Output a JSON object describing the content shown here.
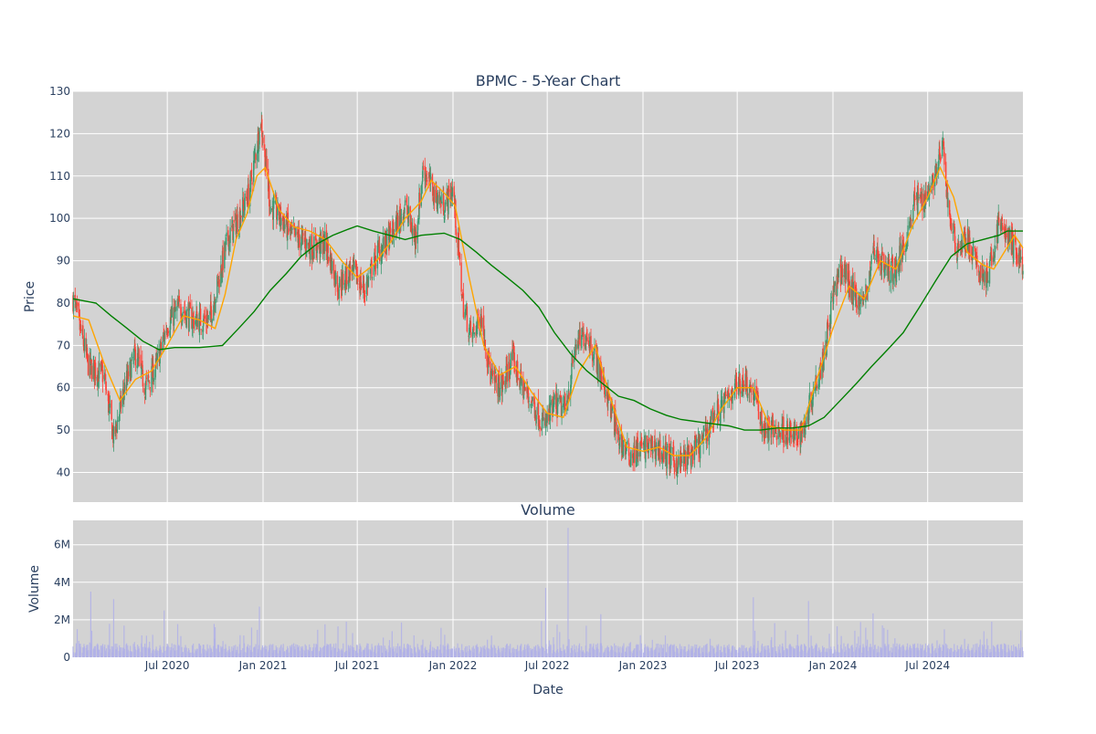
{
  "chart_data": [
    {
      "type": "candlestick",
      "title": "BPMC - 5-Year Chart",
      "ylabel": "Price",
      "xlabel": "",
      "ylim": [
        33,
        130
      ],
      "xlim": [
        "2020-01-02",
        "2024-12-31"
      ],
      "yticks": [
        40,
        50,
        60,
        70,
        80,
        90,
        100,
        110,
        120,
        130
      ],
      "grid": true,
      "colors": {
        "up": "#3d9970",
        "down": "#ff4136",
        "ma_short": "#ffa500",
        "ma_long": "#008000",
        "background": "#d3d3d3",
        "grid": "#ffffff"
      },
      "series": [
        {
          "kind": "ohlc",
          "approx_close": [
            [
              "2020-01-02",
              81
            ],
            [
              "2020-02-01",
              65
            ],
            [
              "2020-03-01",
              63
            ],
            [
              "2020-03-20",
              48
            ],
            [
              "2020-04-10",
              60
            ],
            [
              "2020-05-01",
              68
            ],
            [
              "2020-05-20",
              60
            ],
            [
              "2020-06-10",
              65
            ],
            [
              "2020-07-01",
              75
            ],
            [
              "2020-07-25",
              79
            ],
            [
              "2020-08-20",
              76
            ],
            [
              "2020-09-20",
              76
            ],
            [
              "2020-10-05",
              84
            ],
            [
              "2020-10-25",
              95
            ],
            [
              "2020-11-15",
              100
            ],
            [
              "2020-12-05",
              106
            ],
            [
              "2020-12-28",
              123
            ],
            [
              "2021-01-15",
              103
            ],
            [
              "2021-02-05",
              100
            ],
            [
              "2021-02-25",
              96
            ],
            [
              "2021-03-15",
              95
            ],
            [
              "2021-04-05",
              93
            ],
            [
              "2021-05-01",
              94
            ],
            [
              "2021-05-25",
              84
            ],
            [
              "2021-06-20",
              88
            ],
            [
              "2021-07-15",
              83
            ],
            [
              "2021-08-10",
              92
            ],
            [
              "2021-09-05",
              96
            ],
            [
              "2021-10-01",
              103
            ],
            [
              "2021-10-20",
              95
            ],
            [
              "2021-11-05",
              112
            ],
            [
              "2021-11-25",
              106
            ],
            [
              "2021-12-15",
              103
            ],
            [
              "2022-01-01",
              107
            ],
            [
              "2022-01-20",
              80
            ],
            [
              "2022-02-05",
              72
            ],
            [
              "2022-02-25",
              77
            ],
            [
              "2022-03-15",
              62
            ],
            [
              "2022-04-05",
              60
            ],
            [
              "2022-04-25",
              67
            ],
            [
              "2022-05-15",
              60
            ],
            [
              "2022-06-05",
              56
            ],
            [
              "2022-06-25",
              51
            ],
            [
              "2022-07-15",
              56
            ],
            [
              "2022-08-05",
              55
            ],
            [
              "2022-08-25",
              70
            ],
            [
              "2022-09-15",
              73
            ],
            [
              "2022-10-05",
              66
            ],
            [
              "2022-10-25",
              58
            ],
            [
              "2022-11-15",
              48
            ],
            [
              "2022-12-05",
              44
            ],
            [
              "2023-01-01",
              46
            ],
            [
              "2023-01-25",
              46
            ],
            [
              "2023-02-15",
              44
            ],
            [
              "2023-03-10",
              42
            ],
            [
              "2023-04-01",
              44
            ],
            [
              "2023-04-25",
              47
            ],
            [
              "2023-05-15",
              53
            ],
            [
              "2023-06-05",
              56
            ],
            [
              "2023-06-25",
              60
            ],
            [
              "2023-07-15",
              62
            ],
            [
              "2023-08-05",
              58
            ],
            [
              "2023-08-20",
              50
            ],
            [
              "2023-09-10",
              50
            ],
            [
              "2023-10-01",
              50
            ],
            [
              "2023-10-20",
              48
            ],
            [
              "2023-11-05",
              50
            ],
            [
              "2023-11-25",
              60
            ],
            [
              "2023-12-15",
              68
            ],
            [
              "2024-01-01",
              82
            ],
            [
              "2024-01-20",
              88
            ],
            [
              "2024-02-10",
              82
            ],
            [
              "2024-03-01",
              80
            ],
            [
              "2024-03-20",
              93
            ],
            [
              "2024-04-10",
              88
            ],
            [
              "2024-05-01",
              88
            ],
            [
              "2024-05-20",
              95
            ],
            [
              "2024-06-05",
              104
            ],
            [
              "2024-06-25",
              105
            ],
            [
              "2024-07-15",
              110
            ],
            [
              "2024-07-30",
              117
            ],
            [
              "2024-08-10",
              102
            ],
            [
              "2024-08-25",
              93
            ],
            [
              "2024-09-15",
              95
            ],
            [
              "2024-10-05",
              88
            ],
            [
              "2024-10-25",
              86
            ],
            [
              "2024-11-15",
              99
            ],
            [
              "2024-12-05",
              95
            ],
            [
              "2024-12-31",
              89
            ]
          ]
        },
        {
          "kind": "moving-average-short",
          "points": [
            [
              "2020-01-02",
              77
            ],
            [
              "2020-02-01",
              76
            ],
            [
              "2020-03-01",
              66
            ],
            [
              "2020-04-01",
              57
            ],
            [
              "2020-05-01",
              62
            ],
            [
              "2020-06-01",
              64
            ],
            [
              "2020-07-01",
              70
            ],
            [
              "2020-08-01",
              77
            ],
            [
              "2020-09-01",
              76
            ],
            [
              "2020-10-01",
              74
            ],
            [
              "2020-10-20",
              82
            ],
            [
              "2020-11-10",
              95
            ],
            [
              "2020-12-01",
              101
            ],
            [
              "2020-12-20",
              110
            ],
            [
              "2021-01-05",
              112
            ],
            [
              "2021-02-01",
              102
            ],
            [
              "2021-03-01",
              98
            ],
            [
              "2021-04-01",
              97
            ],
            [
              "2021-05-01",
              95
            ],
            [
              "2021-06-01",
              90
            ],
            [
              "2021-07-01",
              86
            ],
            [
              "2021-08-01",
              89
            ],
            [
              "2021-09-01",
              94
            ],
            [
              "2021-10-01",
              100
            ],
            [
              "2021-11-01",
              104
            ],
            [
              "2021-11-20",
              109
            ],
            [
              "2021-12-15",
              106
            ],
            [
              "2022-01-05",
              103
            ],
            [
              "2022-02-01",
              86
            ],
            [
              "2022-03-01",
              70
            ],
            [
              "2022-04-01",
              63
            ],
            [
              "2022-05-01",
              65
            ],
            [
              "2022-06-01",
              59
            ],
            [
              "2022-07-01",
              54
            ],
            [
              "2022-08-01",
              53
            ],
            [
              "2022-09-01",
              64
            ],
            [
              "2022-10-01",
              70
            ],
            [
              "2022-11-01",
              57
            ],
            [
              "2022-12-01",
              46
            ],
            [
              "2023-01-01",
              45
            ],
            [
              "2023-02-01",
              46
            ],
            [
              "2023-03-01",
              44
            ],
            [
              "2023-04-01",
              44
            ],
            [
              "2023-05-01",
              48
            ],
            [
              "2023-06-01",
              55
            ],
            [
              "2023-07-01",
              60
            ],
            [
              "2023-08-01",
              60
            ],
            [
              "2023-09-01",
              51
            ],
            [
              "2023-10-01",
              50
            ],
            [
              "2023-11-01",
              50
            ],
            [
              "2023-12-01",
              62
            ],
            [
              "2024-01-01",
              74
            ],
            [
              "2024-02-01",
              84
            ],
            [
              "2024-03-01",
              81
            ],
            [
              "2024-04-01",
              90
            ],
            [
              "2024-05-01",
              88
            ],
            [
              "2024-06-01",
              98
            ],
            [
              "2024-07-01",
              105
            ],
            [
              "2024-07-25",
              112
            ],
            [
              "2024-08-20",
              105
            ],
            [
              "2024-09-15",
              92
            ],
            [
              "2024-10-15",
              89
            ],
            [
              "2024-11-05",
              88
            ],
            [
              "2024-11-25",
              92
            ],
            [
              "2024-12-15",
              96
            ],
            [
              "2024-12-31",
              93
            ]
          ]
        },
        {
          "kind": "moving-average-long",
          "points": [
            [
              "2020-01-02",
              81
            ],
            [
              "2020-02-15",
              80
            ],
            [
              "2020-03-15",
              77
            ],
            [
              "2020-04-15",
              74
            ],
            [
              "2020-05-15",
              71
            ],
            [
              "2020-06-15",
              69
            ],
            [
              "2020-07-15",
              69.5
            ],
            [
              "2020-09-01",
              69.5
            ],
            [
              "2020-10-15",
              70
            ],
            [
              "2020-11-15",
              74
            ],
            [
              "2020-12-15",
              78
            ],
            [
              "2021-01-15",
              83
            ],
            [
              "2021-02-15",
              87
            ],
            [
              "2021-03-15",
              91
            ],
            [
              "2021-04-15",
              94
            ],
            [
              "2021-05-15",
              96
            ],
            [
              "2021-06-15",
              97.5
            ],
            [
              "2021-07-01",
              98.2
            ],
            [
              "2021-08-01",
              97
            ],
            [
              "2021-09-01",
              96
            ],
            [
              "2021-10-01",
              95
            ],
            [
              "2021-11-01",
              96
            ],
            [
              "2021-12-15",
              96.5
            ],
            [
              "2022-01-15",
              95
            ],
            [
              "2022-02-15",
              92
            ],
            [
              "2022-03-15",
              89
            ],
            [
              "2022-04-15",
              86
            ],
            [
              "2022-05-15",
              83
            ],
            [
              "2022-06-15",
              79
            ],
            [
              "2022-07-15",
              73
            ],
            [
              "2022-08-15",
              68
            ],
            [
              "2022-09-15",
              64
            ],
            [
              "2022-10-15",
              61
            ],
            [
              "2022-11-15",
              58
            ],
            [
              "2022-12-15",
              57
            ],
            [
              "2023-01-15",
              55
            ],
            [
              "2023-02-15",
              53.5
            ],
            [
              "2023-03-15",
              52.5
            ],
            [
              "2023-04-15",
              52
            ],
            [
              "2023-05-15",
              51.5
            ],
            [
              "2023-06-15",
              51
            ],
            [
              "2023-07-15",
              50
            ],
            [
              "2023-08-15",
              50
            ],
            [
              "2023-09-15",
              50.5
            ],
            [
              "2023-10-15",
              50.5
            ],
            [
              "2023-11-15",
              51
            ],
            [
              "2023-12-15",
              53
            ],
            [
              "2024-01-15",
              57
            ],
            [
              "2024-02-15",
              61
            ],
            [
              "2024-03-15",
              65
            ],
            [
              "2024-04-15",
              69
            ],
            [
              "2024-05-15",
              73
            ],
            [
              "2024-06-15",
              79
            ],
            [
              "2024-07-15",
              85
            ],
            [
              "2024-08-15",
              91
            ],
            [
              "2024-09-15",
              94
            ],
            [
              "2024-10-15",
              95
            ],
            [
              "2024-11-15",
              96
            ],
            [
              "2024-12-01",
              97
            ],
            [
              "2024-12-31",
              97
            ]
          ]
        }
      ]
    },
    {
      "type": "bar",
      "title": "Volume",
      "ylabel": "Volume",
      "xlabel": "Date",
      "ylim": [
        0,
        7300000
      ],
      "xlim": [
        "2020-01-02",
        "2024-12-31"
      ],
      "yticks": [
        0,
        2000000,
        4000000,
        6000000
      ],
      "ytick_labels": [
        "0",
        "2M",
        "4M",
        "6M"
      ],
      "xticks": [
        "2020-07-01",
        "2021-01-01",
        "2021-07-01",
        "2022-01-01",
        "2022-07-01",
        "2023-01-01",
        "2023-07-01",
        "2024-01-01",
        "2024-07-01"
      ],
      "xtick_labels": [
        "Jul 2020",
        "Jan 2021",
        "Jul 2021",
        "Jan 2022",
        "Jul 2022",
        "Jan 2023",
        "Jul 2023",
        "Jan 2024",
        "Jul 2024"
      ],
      "grid": true,
      "colors": {
        "bar": "#b0b0e8",
        "background": "#d3d3d3",
        "grid": "#ffffff"
      },
      "base_volume": 500000,
      "spikes": [
        [
          "2020-01-10",
          1500000
        ],
        [
          "2020-02-05",
          3500000
        ],
        [
          "2020-03-20",
          3100000
        ],
        [
          "2020-04-25",
          3700000
        ],
        [
          "2020-06-25",
          2500000
        ],
        [
          "2020-10-01",
          1600000
        ],
        [
          "2020-12-25",
          2700000
        ],
        [
          "2021-06-10",
          1900000
        ],
        [
          "2022-06-28",
          3700000
        ],
        [
          "2022-08-10",
          6900000
        ],
        [
          "2022-10-12",
          2300000
        ],
        [
          "2023-04-15",
          1400000
        ],
        [
          "2023-08-01",
          3200000
        ],
        [
          "2023-11-15",
          3000000
        ],
        [
          "2024-04-05",
          1700000
        ],
        [
          "2024-07-20",
          3000000
        ],
        [
          "2024-11-01",
          1900000
        ]
      ]
    }
  ]
}
